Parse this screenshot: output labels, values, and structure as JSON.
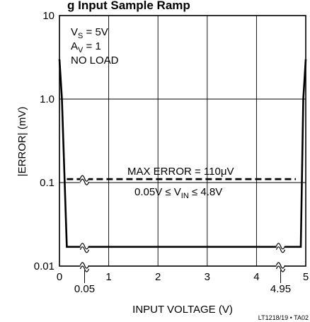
{
  "chart_data": {
    "type": "line",
    "title_fragment": "g        Input Sample Ramp",
    "xlabel": "INPUT VOLTAGE (V)",
    "ylabel": "|ERROR| (mV)",
    "xlim": [
      0,
      5
    ],
    "ylim": [
      0.01,
      10
    ],
    "yscale": "log",
    "grid": true,
    "x_ticks": [
      "0",
      "1",
      "2",
      "3",
      "4",
      "5"
    ],
    "x_extra_ticks": [
      "0.05",
      "4.95"
    ],
    "y_ticks": [
      "0.01",
      "0.1",
      "1.0",
      "10"
    ],
    "conditions": {
      "vs_main": "V",
      "vs_sub": "S",
      "vs_rest": " = 5V",
      "av_main": "A",
      "av_sub": "V",
      "av_rest": " = 1",
      "load": "NO LOAD"
    },
    "max_error_label": "MAX ERROR = 110μV",
    "range_label": {
      "pre": "0.05V ≤ V",
      "sub": "IN",
      "post": " ≤ 4.8V"
    },
    "part_number": "LT1218/19 • TA02",
    "series": [
      {
        "style": "solid",
        "x": [
          0.0,
          0.05,
          0.15,
          0.2,
          4.8,
          4.9,
          4.95,
          5.0
        ],
        "y": [
          3.0,
          1.0,
          0.017,
          0.017,
          0.017,
          0.017,
          1.0,
          3.0
        ]
      },
      {
        "style": "dashed",
        "x": [
          0.15,
          4.8
        ],
        "y": [
          0.11,
          0.11
        ]
      }
    ]
  }
}
